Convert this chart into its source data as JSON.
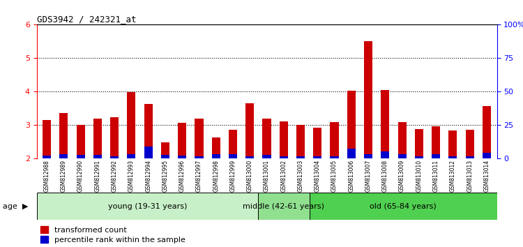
{
  "title": "GDS3942 / 242321_at",
  "samples": [
    "GSM812988",
    "GSM812989",
    "GSM812990",
    "GSM812991",
    "GSM812992",
    "GSM812993",
    "GSM812994",
    "GSM812995",
    "GSM812996",
    "GSM812997",
    "GSM812998",
    "GSM812999",
    "GSM813000",
    "GSM813001",
    "GSM813002",
    "GSM813003",
    "GSM813004",
    "GSM813005",
    "GSM813006",
    "GSM813007",
    "GSM813008",
    "GSM813009",
    "GSM813010",
    "GSM813011",
    "GSM813012",
    "GSM813013",
    "GSM813014"
  ],
  "red_values": [
    3.15,
    3.35,
    3.0,
    3.18,
    3.22,
    3.98,
    3.62,
    2.48,
    3.05,
    3.18,
    2.62,
    2.85,
    3.65,
    3.18,
    3.1,
    3.0,
    2.92,
    3.08,
    4.02,
    5.5,
    4.05,
    3.08,
    2.88,
    2.95,
    2.82,
    2.85,
    3.55
  ],
  "blue_values": [
    0.08,
    0.12,
    0.09,
    0.1,
    0.06,
    0.12,
    0.35,
    0.1,
    0.08,
    0.06,
    0.12,
    0.12,
    0.06,
    0.1,
    0.06,
    0.06,
    0.06,
    0.06,
    0.28,
    0.12,
    0.2,
    0.12,
    0.06,
    0.12,
    0.06,
    0.06,
    0.15
  ],
  "groups": [
    {
      "label": "young (19-31 years)",
      "start": 0,
      "end": 13,
      "color": "#c8f0c8"
    },
    {
      "label": "middle (42-61 years)",
      "start": 13,
      "end": 16,
      "color": "#90e090"
    },
    {
      "label": "old (65-84 years)",
      "start": 16,
      "end": 27,
      "color": "#50d050"
    }
  ],
  "ylim_left": [
    2,
    6
  ],
  "ylim_right": [
    0,
    100
  ],
  "yticks_left": [
    2,
    3,
    4,
    5,
    6
  ],
  "yticks_right": [
    0,
    25,
    50,
    75,
    100
  ],
  "ytick_labels_right": [
    "0",
    "25",
    "50",
    "75",
    "100%"
  ],
  "bar_color_red": "#cc0000",
  "bar_color_blue": "#0000cc",
  "bar_width": 0.5,
  "background_color": "#ffffff",
  "axis_bg_color": "#ffffff",
  "tick_label_area_color": "#d4d4d4",
  "legend_red_label": "transformed count",
  "legend_blue_label": "percentile rank within the sample",
  "age_label": "age"
}
